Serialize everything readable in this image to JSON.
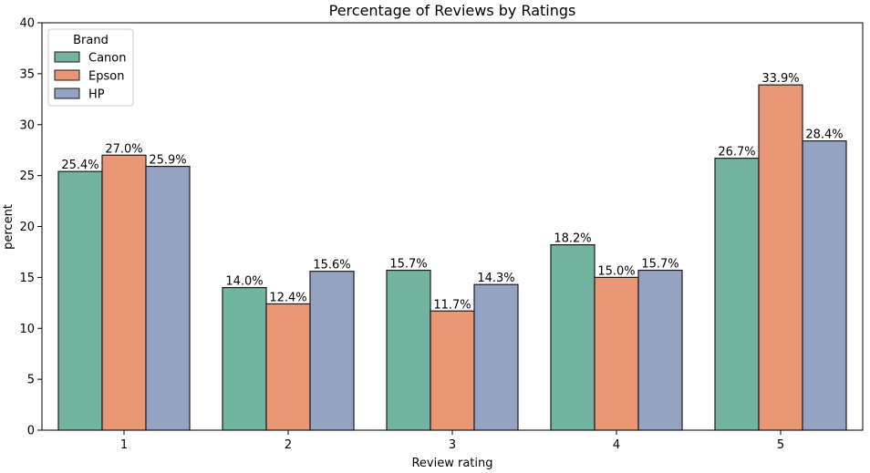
{
  "chart_data": {
    "type": "bar",
    "title": "Percentage of Reviews by Ratings",
    "xlabel": "Review rating",
    "ylabel": "percent",
    "categories": [
      "1",
      "2",
      "3",
      "4",
      "5"
    ],
    "ylim": [
      0,
      40
    ],
    "yticks": [
      0,
      5,
      10,
      15,
      20,
      25,
      30,
      35,
      40
    ],
    "grid": false,
    "legend": {
      "title": "Brand",
      "placement": "top-left"
    },
    "series": [
      {
        "name": "Canon",
        "color": "#72b49f",
        "values": [
          25.4,
          14.0,
          15.7,
          18.2,
          26.7
        ],
        "labels": [
          "25.4%",
          "14.0%",
          "15.7%",
          "18.2%",
          "26.7%"
        ]
      },
      {
        "name": "Epson",
        "color": "#e99774",
        "values": [
          27.0,
          12.4,
          11.7,
          15.0,
          33.9
        ],
        "labels": [
          "27.0%",
          "12.4%",
          "11.7%",
          "15.0%",
          "33.9%"
        ]
      },
      {
        "name": "HP",
        "color": "#95a3c3",
        "values": [
          25.9,
          15.6,
          14.3,
          15.7,
          28.4
        ],
        "labels": [
          "25.9%",
          "15.6%",
          "14.3%",
          "15.7%",
          "28.4%"
        ]
      }
    ]
  }
}
